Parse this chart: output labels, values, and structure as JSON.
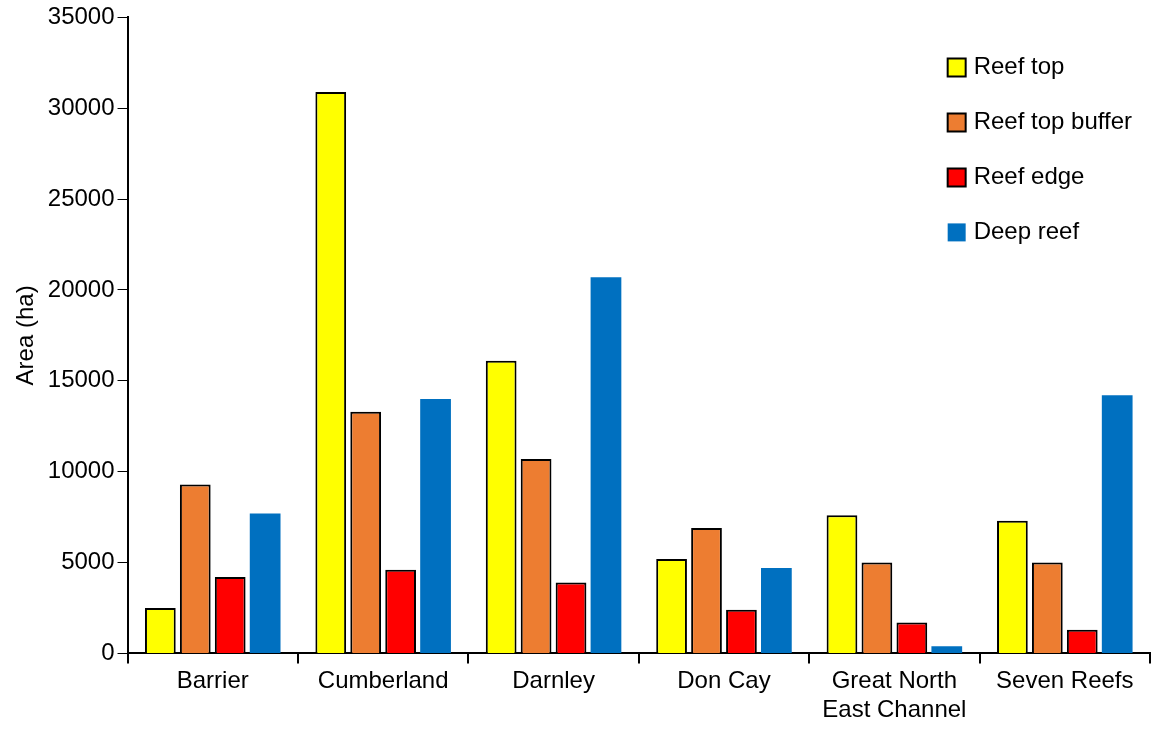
{
  "chart_data": {
    "type": "bar",
    "ylabel": "Area (ha)",
    "categories": [
      "Barrier",
      "Cumberland",
      "Darnley",
      "Don Cay",
      "Great North East Channel",
      "Seven Reefs"
    ],
    "series": [
      {
        "name": "Reef top",
        "color": "#ffff00",
        "values": [
          2500,
          30900,
          16100,
          5200,
          7600,
          7300
        ]
      },
      {
        "name": "Reef top buffer",
        "color": "#ed7d31",
        "values": [
          9300,
          13300,
          10700,
          6900,
          5000,
          5000
        ]
      },
      {
        "name": "Reef edge",
        "color": "#ff0000",
        "values": [
          4200,
          4600,
          3900,
          2400,
          1700,
          1300
        ]
      },
      {
        "name": "Deep reef",
        "color": "#0070c0",
        "values": [
          7700,
          14000,
          20700,
          4700,
          400,
          14200
        ]
      }
    ],
    "ylim": [
      0,
      35000
    ],
    "yticks": [
      0,
      5000,
      10000,
      15000,
      20000,
      25000,
      30000,
      35000
    ],
    "grid": false,
    "legend": "top right"
  }
}
